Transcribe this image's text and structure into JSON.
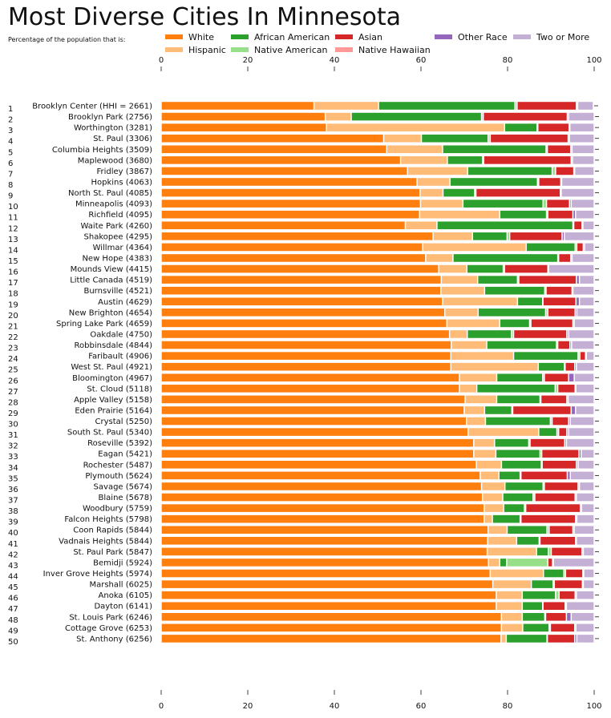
{
  "chart_data": {
    "type": "bar",
    "orientation": "horizontal",
    "stacked": true,
    "title": "Most Diverse Cities In Minnesota",
    "subtitle": "Percentage of the population that is:",
    "xlim": [
      0,
      100
    ],
    "xticks": [
      0,
      20,
      40,
      60,
      80,
      100
    ],
    "legend_position": "top",
    "series": [
      {
        "name": "White",
        "color": "#ff7f0e"
      },
      {
        "name": "Hispanic",
        "color": "#ffbb78"
      },
      {
        "name": "African American",
        "color": "#2ca02c"
      },
      {
        "name": "Native American",
        "color": "#98df8a"
      },
      {
        "name": "Asian",
        "color": "#d62728"
      },
      {
        "name": "Native Hawaiian",
        "color": "#ff9896"
      },
      {
        "name": "Other Race",
        "color": "#9467bd"
      },
      {
        "name": "Two or More",
        "color": "#c5b0d5"
      }
    ],
    "rows": [
      {
        "rank": "1",
        "label": "Brooklyn Center (HHI = 2661)",
        "values": [
          35.3,
          14.9,
          31.5,
          0.5,
          13.7,
          0,
          0.3,
          3.6
        ]
      },
      {
        "rank": "2",
        "label": "Brooklyn Park (2756)",
        "values": [
          37.9,
          6.0,
          30.1,
          0.4,
          19.4,
          0,
          0.3,
          5.9
        ]
      },
      {
        "rank": "3",
        "label": "Worthington (3281)",
        "values": [
          38.2,
          41.1,
          7.5,
          0.2,
          7.2,
          0,
          0.2,
          5.6
        ]
      },
      {
        "rank": "4",
        "label": "St. Paul (3306)",
        "values": [
          51.4,
          8.7,
          15.4,
          0.5,
          18.0,
          0,
          0.3,
          5.7
        ]
      },
      {
        "rank": "5",
        "label": "Columbia Heights (3509)",
        "values": [
          52.1,
          12.9,
          23.9,
          0.3,
          5.4,
          0,
          0.3,
          5.1
        ]
      },
      {
        "rank": "6",
        "label": "Maplewood (3680)",
        "values": [
          55.3,
          10.8,
          8.1,
          0.3,
          20.2,
          0,
          0.3,
          5.0
        ]
      },
      {
        "rank": "7",
        "label": "Fridley (3867)",
        "values": [
          56.9,
          13.9,
          19.5,
          0.8,
          4.2,
          0,
          0.2,
          4.5
        ]
      },
      {
        "rank": "8",
        "label": "Hopkins (4063)",
        "values": [
          59.1,
          7.6,
          20.2,
          0.3,
          5.1,
          0,
          0.2,
          7.5
        ]
      },
      {
        "rank": "9",
        "label": "North St. Paul (4085)",
        "values": [
          59.8,
          5.3,
          7.3,
          0.3,
          19.5,
          0,
          0.2,
          7.6
        ]
      },
      {
        "rank": "10",
        "label": "Minneapolis (4093)",
        "values": [
          59.9,
          9.8,
          18.5,
          0.8,
          5.3,
          0,
          0.4,
          5.3
        ]
      },
      {
        "rank": "11",
        "label": "Richfield (4095)",
        "values": [
          59.7,
          18.5,
          10.8,
          0.3,
          5.8,
          0,
          0.6,
          4.3
        ]
      },
      {
        "rank": "12",
        "label": "Waite Park (4260)",
        "values": [
          56.4,
          7.3,
          31.4,
          0.2,
          1.9,
          0,
          0.2,
          2.6
        ]
      },
      {
        "rank": "13",
        "label": "Shakopee (4295)",
        "values": [
          62.8,
          9.1,
          8.0,
          0.6,
          12.1,
          0,
          0.5,
          6.9
        ]
      },
      {
        "rank": "14",
        "label": "Willmar (4364)",
        "values": [
          60.4,
          23.9,
          11.3,
          0.4,
          1.5,
          0,
          0.3,
          2.2
        ]
      },
      {
        "rank": "15",
        "label": "New Hope (4383)",
        "values": [
          61.1,
          6.3,
          24.2,
          0.2,
          2.8,
          0,
          0.3,
          5.1
        ]
      },
      {
        "rank": "16",
        "label": "Mounds View (4415)",
        "values": [
          64.1,
          6.5,
          8.4,
          0.3,
          10.0,
          0,
          0.2,
          10.5
        ]
      },
      {
        "rank": "17",
        "label": "Little Canada (4519)",
        "values": [
          64.7,
          8.4,
          9.2,
          0.3,
          13.3,
          0,
          0.7,
          3.4
        ]
      },
      {
        "rank": "18",
        "label": "Burnsville (4521)",
        "values": [
          64.6,
          10.1,
          13.9,
          0.3,
          6.0,
          0,
          0.2,
          4.9
        ]
      },
      {
        "rank": "19",
        "label": "Austin (4629)",
        "values": [
          65.0,
          17.3,
          5.8,
          0.1,
          7.6,
          0,
          0.8,
          3.4
        ]
      },
      {
        "rank": "20",
        "label": "New Brighton (4654)",
        "values": [
          65.5,
          7.7,
          15.6,
          0.5,
          6.3,
          0,
          0.4,
          4.0
        ]
      },
      {
        "rank": "21",
        "label": "Spring Lake Park (4659)",
        "values": [
          66.0,
          12.2,
          6.9,
          0.3,
          9.7,
          0,
          0.3,
          4.6
        ]
      },
      {
        "rank": "22",
        "label": "Oakdale (4750)",
        "values": [
          66.6,
          4.1,
          10.2,
          0.5,
          12.3,
          0,
          0.4,
          5.9
        ]
      },
      {
        "rank": "23",
        "label": "Robbinsdale (4844)",
        "values": [
          67.0,
          8.2,
          16.1,
          0.3,
          2.8,
          0,
          0.4,
          5.2
        ]
      },
      {
        "rank": "24",
        "label": "Faribault (4906)",
        "values": [
          66.9,
          14.5,
          14.9,
          0.4,
          1.3,
          0,
          0.2,
          1.8
        ]
      },
      {
        "rank": "25",
        "label": "West St. Paul (4921)",
        "values": [
          66.9,
          20.2,
          6.0,
          0.2,
          2.2,
          0,
          0.4,
          4.1
        ]
      },
      {
        "rank": "26",
        "label": "Bloomington (4967)",
        "values": [
          68.9,
          8.6,
          10.6,
          0.4,
          5.6,
          0,
          1.3,
          4.6
        ]
      },
      {
        "rank": "27",
        "label": "St. Cloud (5118)",
        "values": [
          68.9,
          4.0,
          18.1,
          0.6,
          4.0,
          0,
          0.2,
          4.2
        ]
      },
      {
        "rank": "28",
        "label": "Apple Valley (5158)",
        "values": [
          70.2,
          7.3,
          10.0,
          0.2,
          6.0,
          0,
          0.3,
          6.0
        ]
      },
      {
        "rank": "29",
        "label": "Eden Prairie (5164)",
        "values": [
          70.0,
          4.7,
          6.3,
          0.2,
          13.5,
          0,
          1.0,
          4.3
        ]
      },
      {
        "rank": "30",
        "label": "Crystal (5250)",
        "values": [
          70.5,
          4.4,
          15.0,
          0.4,
          3.8,
          0,
          0.4,
          5.5
        ]
      },
      {
        "rank": "31",
        "label": "South St. Paul (5340)",
        "values": [
          70.9,
          16.3,
          4.2,
          0.4,
          1.9,
          0,
          0.4,
          5.9
        ]
      },
      {
        "rank": "32",
        "label": "Roseville (5392)",
        "values": [
          72.2,
          4.8,
          7.9,
          0.3,
          8.0,
          0,
          0.4,
          6.4
        ]
      },
      {
        "rank": "33",
        "label": "Eagan (5421)",
        "values": [
          72.2,
          5.1,
          10.2,
          0.4,
          8.6,
          0,
          0.5,
          3.0
        ]
      },
      {
        "rank": "34",
        "label": "Rochester (5487)",
        "values": [
          72.8,
          5.8,
          9.2,
          0.2,
          7.9,
          0,
          0.4,
          3.7
        ]
      },
      {
        "rank": "35",
        "label": "Plymouth (5624)",
        "values": [
          73.7,
          4.3,
          4.9,
          0.2,
          10.7,
          0,
          0.7,
          5.5
        ]
      },
      {
        "rank": "36",
        "label": "Savage (5674)",
        "values": [
          74.0,
          5.4,
          8.8,
          0.3,
          7.8,
          0,
          0.3,
          3.4
        ]
      },
      {
        "rank": "37",
        "label": "Blaine (5678)",
        "values": [
          74.2,
          4.7,
          7.0,
          0.4,
          9.3,
          0,
          0.3,
          4.1
        ]
      },
      {
        "rank": "38",
        "label": "Woodbury (5759)",
        "values": [
          74.6,
          4.5,
          4.8,
          0.3,
          12.6,
          0,
          0.3,
          2.9
        ]
      },
      {
        "rank": "39",
        "label": "Falcon Heights (5798)",
        "values": [
          74.6,
          1.9,
          6.4,
          0.2,
          12.6,
          0,
          0.3,
          4.0
        ]
      },
      {
        "rank": "40",
        "label": "Coon Rapids (5844)",
        "values": [
          75.5,
          4.4,
          9.2,
          0.5,
          5.5,
          0,
          0.3,
          4.6
        ]
      },
      {
        "rank": "41",
        "label": "Vadnais Heights (5844)",
        "values": [
          75.4,
          6.7,
          5.2,
          0.2,
          8.2,
          0,
          0.2,
          4.1
        ]
      },
      {
        "rank": "42",
        "label": "St. Paul Park (5847)",
        "values": [
          75.3,
          11.4,
          2.7,
          0.7,
          7.1,
          0,
          0.3,
          2.5
        ]
      },
      {
        "rank": "43",
        "label": "Bemidji (5924)",
        "values": [
          75.6,
          2.6,
          1.6,
          9.5,
          1.1,
          0,
          0.2,
          9.4
        ]
      },
      {
        "rank": "44",
        "label": "Inver Grove Heights (5974)",
        "values": [
          76.0,
          12.3,
          4.7,
          0.4,
          4.0,
          0,
          0.2,
          2.4
        ]
      },
      {
        "rank": "45",
        "label": "Marshall (6025)",
        "values": [
          76.6,
          8.9,
          5.0,
          0.3,
          6.5,
          0,
          0.2,
          2.5
        ]
      },
      {
        "rank": "46",
        "label": "Anoka (6105)",
        "values": [
          77.4,
          6.0,
          7.7,
          0.8,
          3.7,
          0,
          0.3,
          4.1
        ]
      },
      {
        "rank": "47",
        "label": "Dayton (6141)",
        "values": [
          77.4,
          6.0,
          4.7,
          0.1,
          5.1,
          0,
          0.3,
          6.4
        ]
      },
      {
        "rank": "48",
        "label": "St. Louis Park (6246)",
        "values": [
          78.6,
          4.8,
          5.2,
          0.2,
          4.8,
          0,
          1.1,
          5.3
        ]
      },
      {
        "rank": "49",
        "label": "Cottage Grove (6253)",
        "values": [
          78.6,
          4.9,
          6.1,
          0.3,
          5.6,
          0,
          0.3,
          4.2
        ]
      },
      {
        "rank": "50",
        "label": "St. Anthony (6256)",
        "values": [
          78.5,
          1.2,
          9.4,
          0.1,
          6.3,
          0,
          0.5,
          4.0
        ]
      }
    ]
  }
}
